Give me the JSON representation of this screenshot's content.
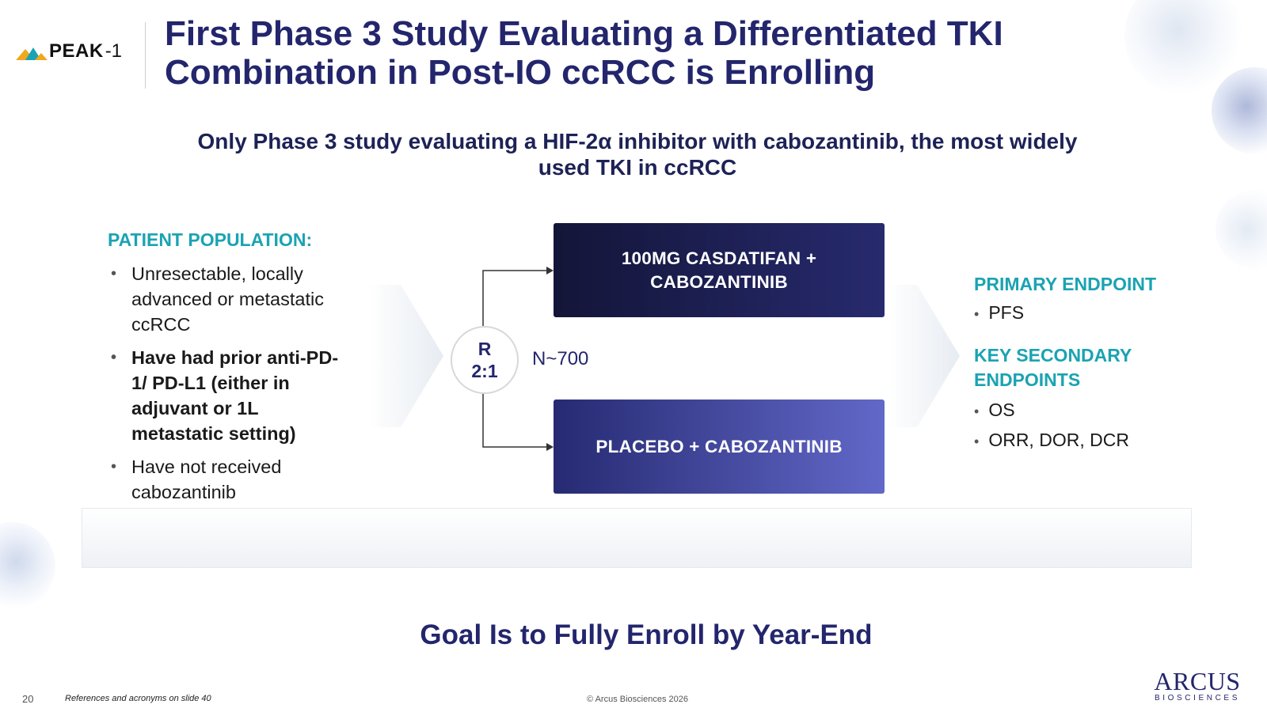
{
  "header": {
    "logo_text": "PEAK",
    "logo_suffix": "-1",
    "title_line1": "First Phase 3 Study Evaluating a Differentiated TKI",
    "title_line2": "Combination in Post-IO ccRCC is Enrolling"
  },
  "subtitle_line1": "Only Phase 3 study evaluating a HIF-2α inhibitor with cabozantinib, the most widely",
  "subtitle_line2": "used TKI in ccRCC",
  "population": {
    "heading": "PATIENT POPULATION:",
    "items": [
      {
        "line1": "Unresectable, locally",
        "line2": "advanced or metastatic",
        "line3": "ccRCC"
      },
      {
        "line1": "Have had prior anti-PD-",
        "line2": "1/ PD-L1 (either in",
        "line3": "adjuvant or 1L",
        "line4": "metastatic setting)"
      },
      {
        "line1": "Have not received",
        "line2": "cabozantinib"
      }
    ]
  },
  "randomization": {
    "r": "R",
    "ratio": "2:1",
    "n": "N~700"
  },
  "arms": [
    {
      "line1": "100MG CASDATIFAN +",
      "line2": "CABOZANTINIB"
    },
    {
      "line1": "PLACEBO + CABOZANTINIB"
    }
  ],
  "endpoints": {
    "primary_heading": "PRIMARY ENDPOINT",
    "primary_items": [
      "PFS"
    ],
    "secondary_heading_line1": "KEY SECONDARY",
    "secondary_heading_line2": "ENDPOINTS",
    "secondary_items": [
      "OS",
      "ORR, DOR, DCR"
    ]
  },
  "goal": "Goal Is to Fully Enroll by Year-End",
  "footer": {
    "page_number": "20",
    "references": "References and acronyms on slide 40",
    "copyright": "© Arcus Biosciences 2026",
    "company_name": "ARCUS",
    "company_sub": "BIOSCIENCES"
  },
  "colors": {
    "title": "#23266c",
    "accent_teal": "#1aa3b2",
    "arm1": "#1a1c4e",
    "arm2": "#5a60c0"
  },
  "bullet_glyph": "•"
}
